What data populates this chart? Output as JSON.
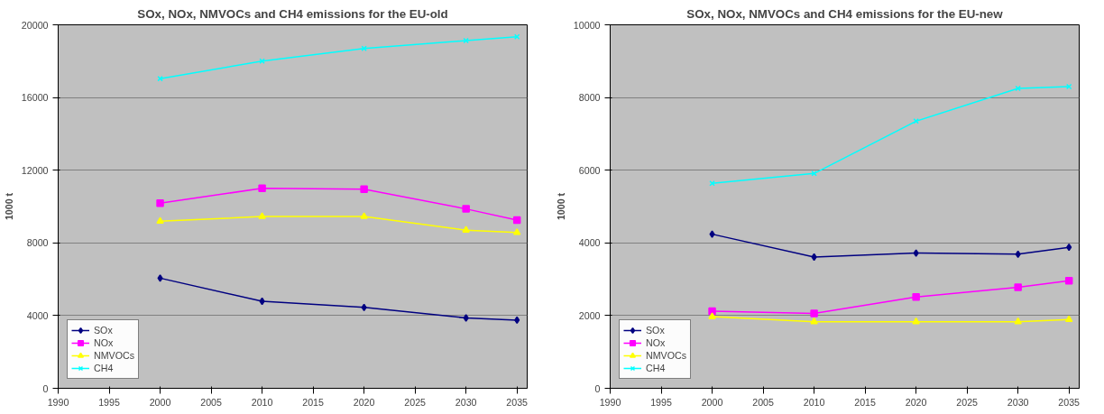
{
  "chart_data": [
    {
      "type": "line",
      "title": "SOx, NOx, NMVOCs and CH4 emissions for the EU-old",
      "ylabel": "1000 t",
      "x": [
        2000,
        2010,
        2020,
        2030,
        2035
      ],
      "xlim": [
        1990,
        2036
      ],
      "xticks": [
        1990,
        1995,
        2000,
        2005,
        2010,
        2015,
        2020,
        2025,
        2030,
        2035
      ],
      "ylim": [
        0,
        20000
      ],
      "yticks": [
        0,
        4000,
        8000,
        12000,
        16000,
        20000
      ],
      "grid": "y",
      "legend": "bottom left",
      "series": [
        {
          "name": "SOx",
          "color": "#000080",
          "marker": "diamond",
          "values": [
            6060,
            4790,
            4450,
            3870,
            3750
          ]
        },
        {
          "name": "NOx",
          "color": "#ff00ff",
          "marker": "square",
          "values": [
            10190,
            11000,
            10960,
            9870,
            9260
          ]
        },
        {
          "name": "NMVOCs",
          "color": "#ffff00",
          "marker": "triangle",
          "values": [
            9190,
            9450,
            9450,
            8700,
            8570
          ]
        },
        {
          "name": "CH4",
          "color": "#00ffff",
          "marker": "cross",
          "values": [
            17040,
            18000,
            18700,
            19130,
            19340
          ]
        }
      ]
    },
    {
      "type": "line",
      "title": "SOx, NOx, NMVOCs and CH4 emissions for the EU-new",
      "ylabel": "1000 t",
      "x": [
        2000,
        2010,
        2020,
        2030,
        2035
      ],
      "xlim": [
        1990,
        2036
      ],
      "xticks": [
        1990,
        1995,
        2000,
        2005,
        2010,
        2015,
        2020,
        2025,
        2030,
        2035
      ],
      "ylim": [
        0,
        10000
      ],
      "yticks": [
        0,
        2000,
        4000,
        6000,
        8000,
        10000
      ],
      "grid": "y",
      "legend": "bottom left",
      "series": [
        {
          "name": "SOx",
          "color": "#000080",
          "marker": "diamond",
          "values": [
            4240,
            3610,
            3720,
            3690,
            3880
          ]
        },
        {
          "name": "NOx",
          "color": "#ff00ff",
          "marker": "square",
          "values": [
            2120,
            2060,
            2510,
            2780,
            2960
          ]
        },
        {
          "name": "NMVOCs",
          "color": "#ffff00",
          "marker": "triangle",
          "values": [
            1970,
            1830,
            1830,
            1830,
            1890
          ]
        },
        {
          "name": "CH4",
          "color": "#00ffff",
          "marker": "cross",
          "values": [
            5640,
            5910,
            7350,
            8250,
            8300
          ]
        }
      ]
    }
  ]
}
